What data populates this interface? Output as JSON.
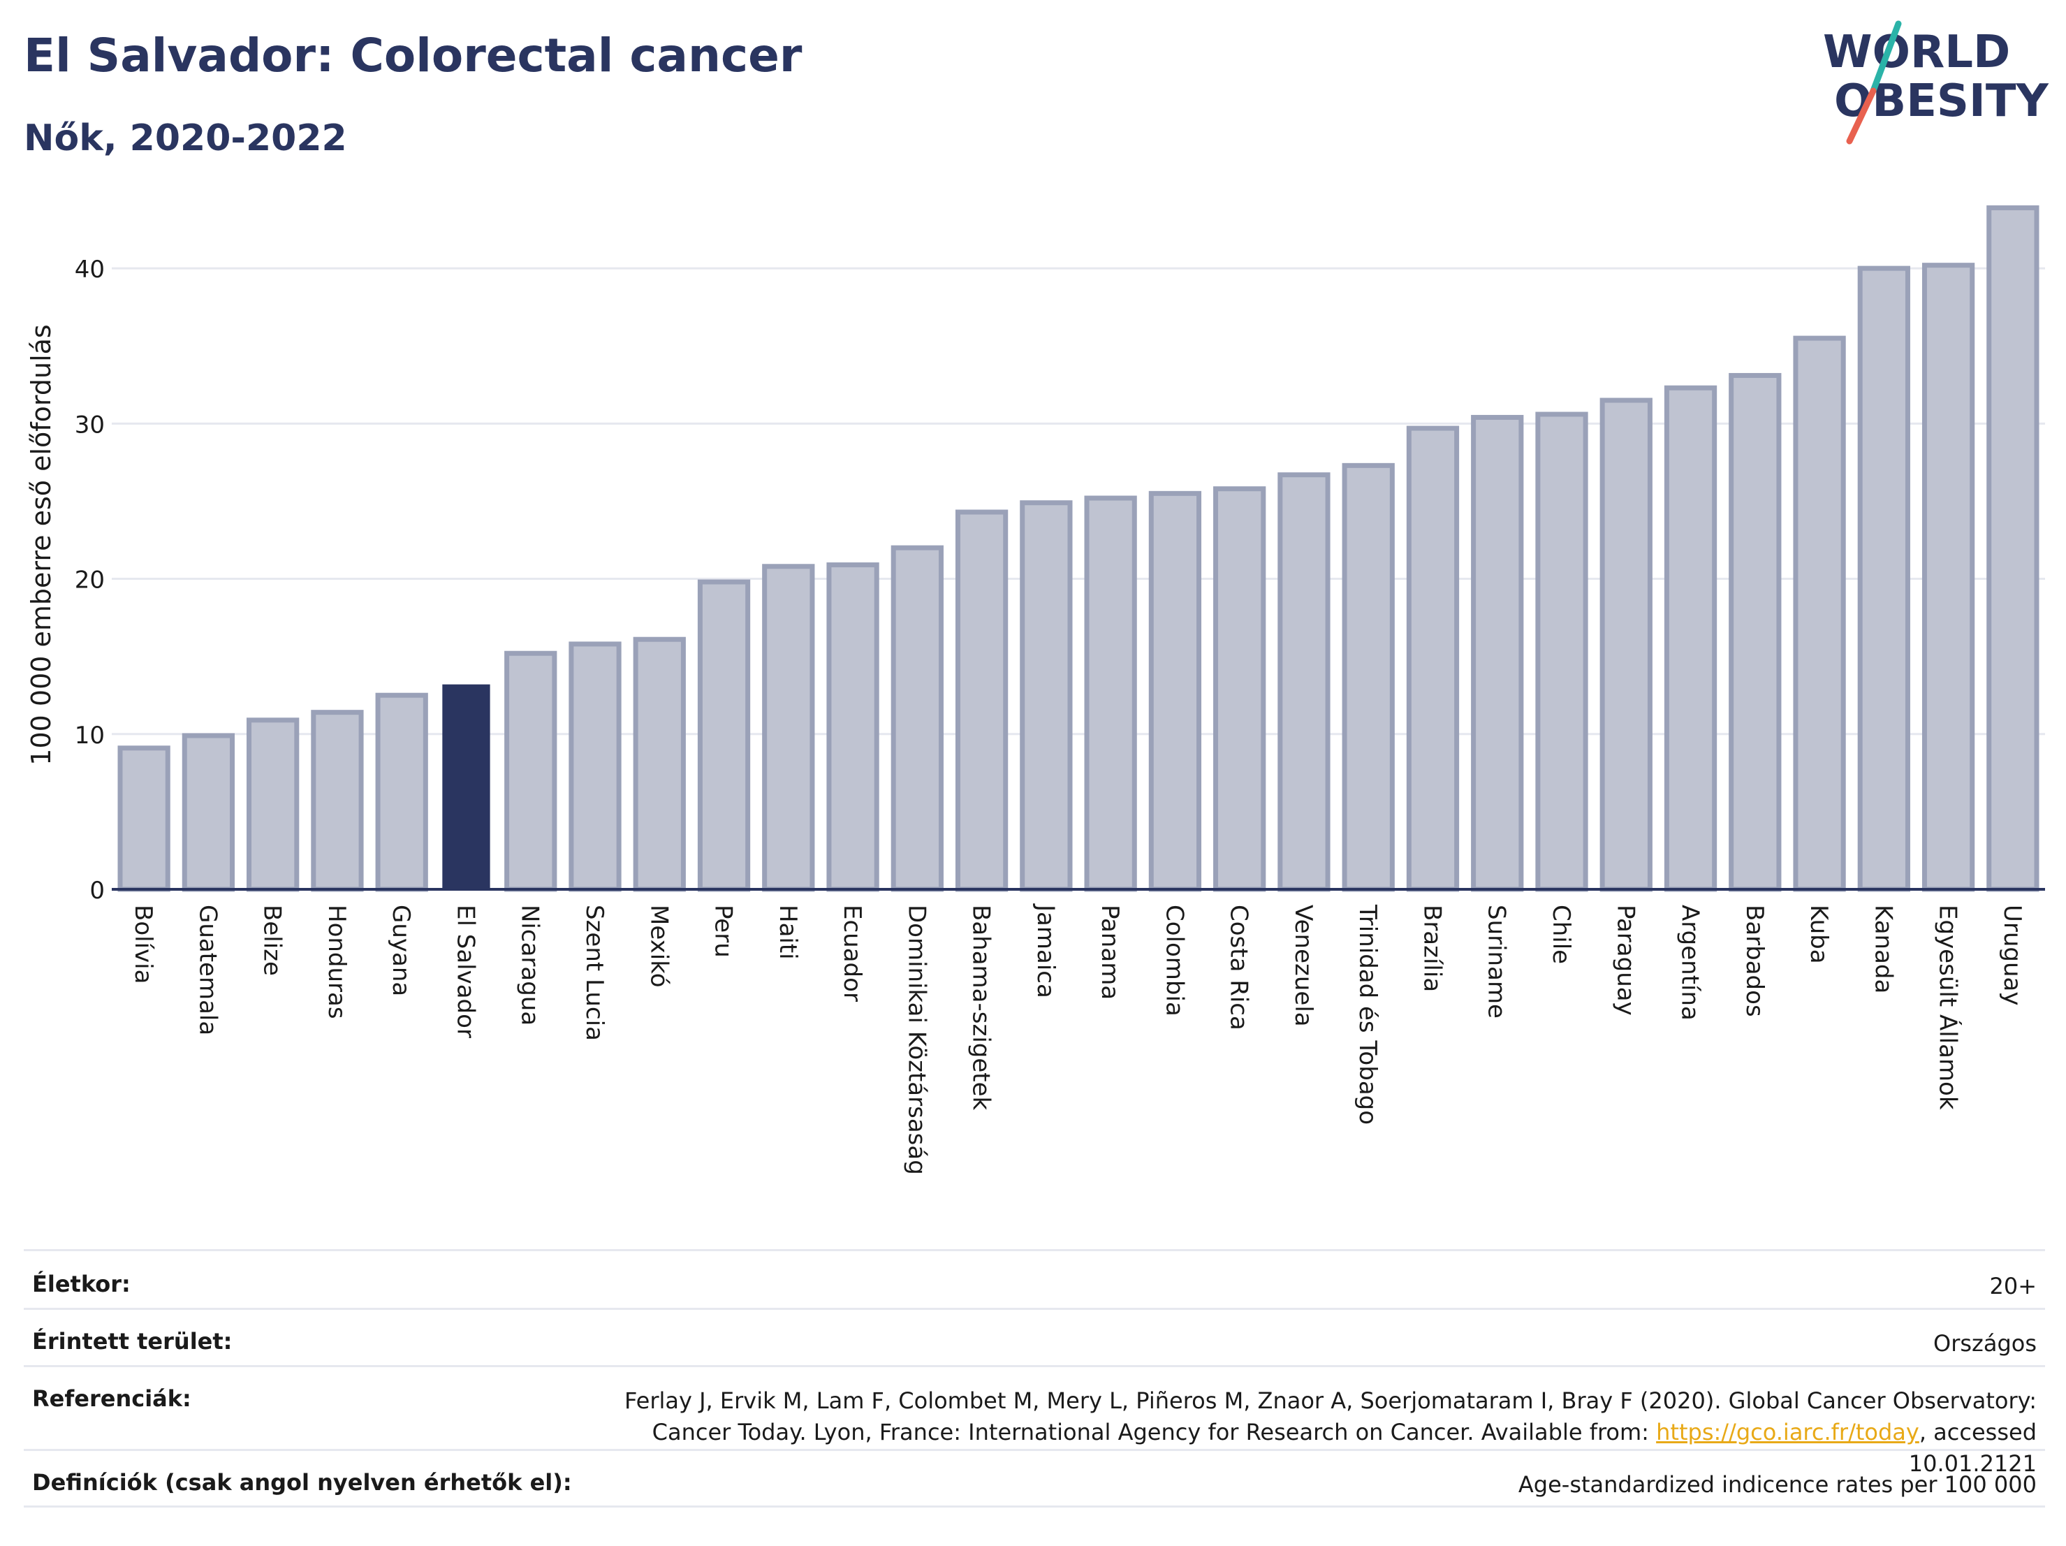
{
  "header": {
    "title": "El Salvador: Colorectal cancer",
    "subtitle": "Nők, 2020-2022"
  },
  "logo": {
    "line1": "WORLD",
    "line2": "OBESITY",
    "colors": {
      "text": "#2a3560",
      "slash_teal": "#2bb3a8",
      "slash_red": "#e8614f"
    }
  },
  "colors": {
    "bar_default": "#bfc3d1",
    "bar_default_stroke": "#9aa1b8",
    "bar_highlight": "#2a3560",
    "axis": "#2a3560",
    "grid": "#e6e8ef"
  },
  "chart_data": {
    "type": "bar",
    "ylabel": "100 000 emberre eső előfordulás",
    "ylim": [
      0,
      45
    ],
    "yticks": [
      0,
      10,
      20,
      30,
      40
    ],
    "grid": true,
    "highlight": "El Salvador",
    "categories": [
      "Bolívia",
      "Guatemala",
      "Belize",
      "Honduras",
      "Guyana",
      "El Salvador",
      "Nicaragua",
      "Szent Lucia",
      "Mexikó",
      "Peru",
      "Haiti",
      "Ecuador",
      "Dominikai Köztársaság",
      "Bahama-szigetek",
      "Jamaica",
      "Panama",
      "Colombia",
      "Costa Rica",
      "Venezuela",
      "Trinidad és Tobago",
      "Brazília",
      "Suriname",
      "Chile",
      "Paraguay",
      "Argentína",
      "Barbados",
      "Kuba",
      "Kanada",
      "Egyesült Államok",
      "Uruguay"
    ],
    "values": [
      9.1,
      9.9,
      10.9,
      11.4,
      12.5,
      13.2,
      15.2,
      15.8,
      16.1,
      19.8,
      20.8,
      20.9,
      22.0,
      24.3,
      24.9,
      25.2,
      25.5,
      25.8,
      26.7,
      27.3,
      29.7,
      30.4,
      30.6,
      31.5,
      32.3,
      33.1,
      35.5,
      40.0,
      40.2,
      43.9
    ]
  },
  "footer": {
    "age_label": "Életkor:",
    "age_value": "20+",
    "area_label": "Érintett terület:",
    "area_value": "Országos",
    "ref_label": "Referenciák:",
    "ref_text_1": "Ferlay J, Ervik M, Lam F, Colombet M, Mery L, Piñeros M, Znaor A, Soerjomataram I, Bray F (2020). Global Cancer Observatory: Cancer Today. Lyon, France: International Agency for Research on Cancer. Available from: ",
    "ref_link": "https://gco.iarc.fr/today",
    "ref_text_2": ", accessed 10.01.2121",
    "def_label": "Definíciók (csak angol nyelven érhetők el):",
    "def_value": "Age-standardized indicence rates per 100 000"
  }
}
